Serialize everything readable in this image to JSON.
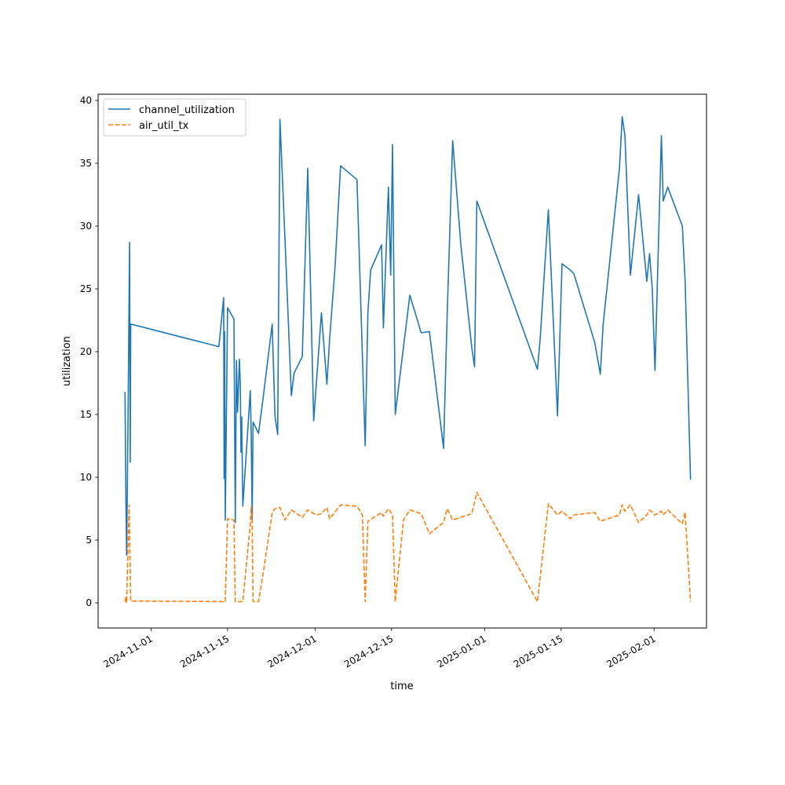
{
  "chart_data": {
    "type": "line",
    "title": "",
    "xlabel": "time",
    "ylabel": "utilization",
    "x_type": "date",
    "xlim": [
      "2024-10-22T08:00",
      "2025-02-10T14:00"
    ],
    "ylim": [
      -2,
      40.5
    ],
    "x_ticks": [
      "2024-11-01",
      "2024-11-15",
      "2024-12-01",
      "2024-12-15",
      "2025-01-01",
      "2025-01-15",
      "2025-02-01"
    ],
    "y_ticks": [
      0,
      5,
      10,
      15,
      20,
      25,
      30,
      35,
      40
    ],
    "grid": false,
    "legend": "upper left",
    "colors": {
      "channel_utilization": "#1f77b4",
      "air_util_tx": "#ff7f0e"
    },
    "series": [
      {
        "name": "channel_utilization",
        "style": "solid",
        "points": [
          [
            "2024-10-27T06:00",
            16.8
          ],
          [
            "2024-10-27T10:00",
            8.1
          ],
          [
            "2024-10-27T13:00",
            3.8
          ],
          [
            "2024-10-27T19:00",
            14.0
          ],
          [
            "2024-10-28T02:00",
            28.7
          ],
          [
            "2024-10-28T05:00",
            11.2
          ],
          [
            "2024-10-28T07:00",
            22.2
          ],
          [
            "2024-11-13T10:00",
            20.4
          ],
          [
            "2024-11-14T07:00",
            24.3
          ],
          [
            "2024-11-14T09:00",
            9.9
          ],
          [
            "2024-11-14T11:00",
            21.6
          ],
          [
            "2024-11-14T14:00",
            6.6
          ],
          [
            "2024-11-15T00:00",
            23.5
          ],
          [
            "2024-11-16T04:00",
            22.6
          ],
          [
            "2024-11-16T10:00",
            6.4
          ],
          [
            "2024-11-16T15:00",
            19.3
          ],
          [
            "2024-11-16T20:00",
            15.2
          ],
          [
            "2024-11-17T04:00",
            19.4
          ],
          [
            "2024-11-17T08:00",
            17.3
          ],
          [
            "2024-11-17T11:00",
            12.0
          ],
          [
            "2024-11-17T14:00",
            14.8
          ],
          [
            "2024-11-17T19:00",
            7.7
          ],
          [
            "2024-11-19T04:00",
            16.9
          ],
          [
            "2024-11-19T08:00",
            13.2
          ],
          [
            "2024-11-19T12:00",
            6.6
          ],
          [
            "2024-11-19T16:00",
            14.4
          ],
          [
            "2024-11-20T16:00",
            13.5
          ],
          [
            "2024-11-21T12:00",
            16.3
          ],
          [
            "2024-11-23T04:00",
            22.2
          ],
          [
            "2024-11-23T16:00",
            14.9
          ],
          [
            "2024-11-24T04:00",
            13.4
          ],
          [
            "2024-11-24T14:00",
            38.5
          ],
          [
            "2024-11-25T12:00",
            29.0
          ],
          [
            "2024-11-26T16:00",
            16.5
          ],
          [
            "2024-11-27T04:00",
            18.3
          ],
          [
            "2024-11-28T16:00",
            19.6
          ],
          [
            "2024-11-29T16:00",
            34.6
          ],
          [
            "2024-11-30T18:00",
            14.5
          ],
          [
            "2024-12-02T04:00",
            23.1
          ],
          [
            "2024-12-03T04:00",
            17.4
          ],
          [
            "2024-12-03T16:00",
            21.0
          ],
          [
            "2024-12-04T16:00",
            26.8
          ],
          [
            "2024-12-05T16:00",
            34.8
          ],
          [
            "2024-12-08T16:00",
            33.7
          ],
          [
            "2024-12-10T04:00",
            12.5
          ],
          [
            "2024-12-10T16:00",
            23.1
          ],
          [
            "2024-12-11T04:00",
            26.5
          ],
          [
            "2024-12-13T04:00",
            28.5
          ],
          [
            "2024-12-13T12:00",
            21.9
          ],
          [
            "2024-12-14T10:00",
            33.1
          ],
          [
            "2024-12-14T20:00",
            26.1
          ],
          [
            "2024-12-15T04:00",
            36.5
          ],
          [
            "2024-12-15T16:00",
            15.0
          ],
          [
            "2024-12-18T08:00",
            24.5
          ],
          [
            "2024-12-20T10:00",
            21.5
          ],
          [
            "2024-12-21T22:00",
            21.6
          ],
          [
            "2024-12-24T12:00",
            12.3
          ],
          [
            "2024-12-25T04:00",
            23.0
          ],
          [
            "2024-12-26T04:00",
            36.8
          ],
          [
            "2024-12-27T16:00",
            28.5
          ],
          [
            "2024-12-29T16:00",
            20.3
          ],
          [
            "2024-12-30T04:00",
            18.8
          ],
          [
            "2024-12-30T14:00",
            32.0
          ],
          [
            "2025-01-10T16:00",
            18.6
          ],
          [
            "2025-01-11T04:00",
            21.0
          ],
          [
            "2025-01-12T16:00",
            31.3
          ],
          [
            "2025-01-14T08:00",
            14.9
          ],
          [
            "2025-01-15T04:00",
            27.0
          ],
          [
            "2025-01-16T16:00",
            26.5
          ],
          [
            "2025-01-17T08:00",
            26.2
          ],
          [
            "2025-01-21T04:00",
            20.7
          ],
          [
            "2025-01-22T04:00",
            18.2
          ],
          [
            "2025-01-22T16:00",
            22.1
          ],
          [
            "2025-01-25T16:00",
            34.6
          ],
          [
            "2025-01-26T04:00",
            38.7
          ],
          [
            "2025-01-26T16:00",
            37.2
          ],
          [
            "2025-01-27T16:00",
            26.1
          ],
          [
            "2025-01-29T04:00",
            32.5
          ],
          [
            "2025-01-30T16:00",
            25.6
          ],
          [
            "2025-01-31T04:00",
            27.8
          ],
          [
            "2025-01-31T16:00",
            25.0
          ],
          [
            "2025-02-01T04:00",
            18.5
          ],
          [
            "2025-02-02T08:00",
            37.2
          ],
          [
            "2025-02-02T16:00",
            32.0
          ],
          [
            "2025-02-03T12:00",
            33.1
          ],
          [
            "2025-02-06T04:00",
            30.0
          ],
          [
            "2025-02-06T16:00",
            25.7
          ],
          [
            "2025-02-07T16:00",
            9.8
          ]
        ]
      },
      {
        "name": "air_util_tx",
        "style": "dashed",
        "points": [
          [
            "2024-10-27T06:00",
            0.1
          ],
          [
            "2024-10-27T10:00",
            0.5
          ],
          [
            "2024-10-27T13:00",
            0.0
          ],
          [
            "2024-10-28T00:00",
            7.8
          ],
          [
            "2024-10-28T07:00",
            0.15
          ],
          [
            "2024-11-14T07:00",
            0.1
          ],
          [
            "2024-11-14T14:00",
            0.1
          ],
          [
            "2024-11-15T00:00",
            6.7
          ],
          [
            "2024-11-16T04:00",
            6.6
          ],
          [
            "2024-11-16T10:00",
            0.1
          ],
          [
            "2024-11-17T19:00",
            0.1
          ],
          [
            "2024-11-19T04:00",
            6.3
          ],
          [
            "2024-11-19T08:00",
            7.7
          ],
          [
            "2024-11-19T12:00",
            6.4
          ],
          [
            "2024-11-19T16:00",
            0.1
          ],
          [
            "2024-11-20T16:00",
            0.1
          ],
          [
            "2024-11-21T12:00",
            2.3
          ],
          [
            "2024-11-23T04:00",
            7.2
          ],
          [
            "2024-11-23T16:00",
            7.5
          ],
          [
            "2024-11-24T14:00",
            7.6
          ],
          [
            "2024-11-25T12:00",
            6.6
          ],
          [
            "2024-11-26T16:00",
            7.4
          ],
          [
            "2024-11-28T16:00",
            6.8
          ],
          [
            "2024-11-29T16:00",
            7.4
          ],
          [
            "2024-12-01T04:00",
            7.0
          ],
          [
            "2024-12-02T04:00",
            7.1
          ],
          [
            "2024-12-03T04:00",
            7.6
          ],
          [
            "2024-12-03T16:00",
            6.7
          ],
          [
            "2024-12-05T16:00",
            7.8
          ],
          [
            "2024-12-08T16:00",
            7.7
          ],
          [
            "2024-12-09T16:00",
            7.0
          ],
          [
            "2024-12-10T04:00",
            0.1
          ],
          [
            "2024-12-10T16:00",
            6.5
          ],
          [
            "2024-12-13T04:00",
            7.2
          ],
          [
            "2024-12-13T12:00",
            6.9
          ],
          [
            "2024-12-14T10:00",
            7.5
          ],
          [
            "2024-12-15T04:00",
            7.0
          ],
          [
            "2024-12-15T16:00",
            0.1
          ],
          [
            "2024-12-17T04:00",
            6.6
          ],
          [
            "2024-12-18T08:00",
            7.4
          ],
          [
            "2024-12-20T10:00",
            7.1
          ],
          [
            "2024-12-21T22:00",
            5.5
          ],
          [
            "2024-12-24T12:00",
            6.4
          ],
          [
            "2024-12-25T04:00",
            7.5
          ],
          [
            "2024-12-26T04:00",
            6.6
          ],
          [
            "2024-12-29T16:00",
            7.1
          ],
          [
            "2024-12-30T14:00",
            8.8
          ],
          [
            "2025-01-10T16:00",
            0.1
          ],
          [
            "2025-01-12T16:00",
            7.9
          ],
          [
            "2025-01-14T08:00",
            7.0
          ],
          [
            "2025-01-15T04:00",
            7.3
          ],
          [
            "2025-01-16T16:00",
            6.7
          ],
          [
            "2025-01-17T08:00",
            7.0
          ],
          [
            "2025-01-21T04:00",
            7.2
          ],
          [
            "2025-01-22T04:00",
            6.5
          ],
          [
            "2025-01-25T16:00",
            7.0
          ],
          [
            "2025-01-26T04:00",
            7.8
          ],
          [
            "2025-01-26T16:00",
            7.3
          ],
          [
            "2025-01-27T16:00",
            7.8
          ],
          [
            "2025-01-29T04:00",
            6.4
          ],
          [
            "2025-01-30T16:00",
            7.0
          ],
          [
            "2025-01-31T04:00",
            7.4
          ],
          [
            "2025-02-01T04:00",
            7.0
          ],
          [
            "2025-02-02T08:00",
            7.3
          ],
          [
            "2025-02-02T16:00",
            7.0
          ],
          [
            "2025-02-03T12:00",
            7.4
          ],
          [
            "2025-02-06T04:00",
            6.3
          ],
          [
            "2025-02-06T16:00",
            7.2
          ],
          [
            "2025-02-07T16:00",
            0.1
          ]
        ]
      }
    ]
  }
}
